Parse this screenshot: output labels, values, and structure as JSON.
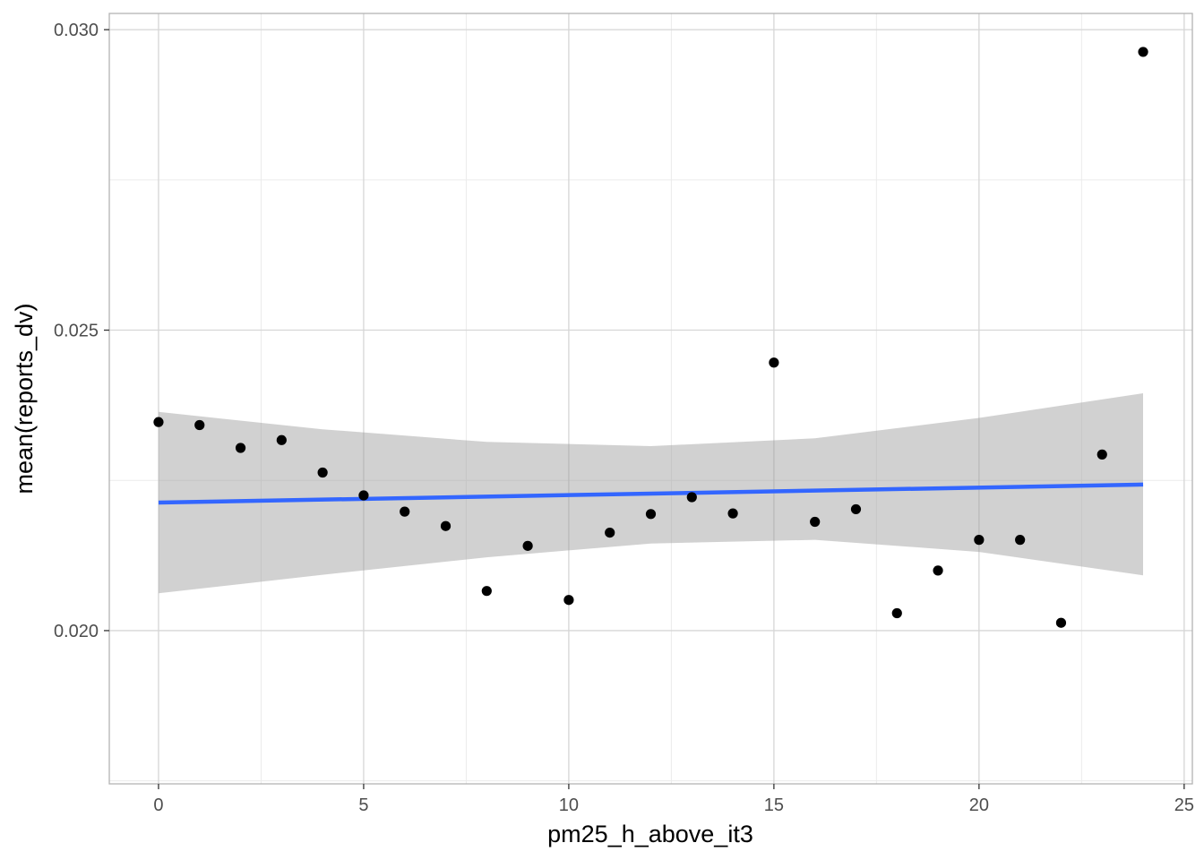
{
  "chart_data": {
    "type": "scatter",
    "title": "",
    "xlabel": "pm25_h_above_it3",
    "ylabel": "mean(reports_dv)",
    "xlim": [
      -1.2,
      25.2
    ],
    "ylim": [
      0.01745,
      0.03027
    ],
    "x_ticks": [
      0,
      5,
      10,
      15,
      20,
      25
    ],
    "x_tick_labels": [
      "0",
      "5",
      "10",
      "15",
      "20",
      "25"
    ],
    "y_ticks": [
      0.02,
      0.025,
      0.03
    ],
    "y_tick_labels": [
      "0.020",
      "0.025",
      "0.030"
    ],
    "grid": true,
    "points": {
      "x": [
        0,
        1,
        2,
        3,
        4,
        5,
        6,
        7,
        8,
        9,
        10,
        11,
        12,
        13,
        14,
        15,
        16,
        17,
        18,
        19,
        20,
        21,
        22,
        23,
        24
      ],
      "y": [
        0.02347,
        0.02342,
        0.02304,
        0.02317,
        0.02263,
        0.02225,
        0.02198,
        0.02174,
        0.02066,
        0.02141,
        0.02051,
        0.02163,
        0.02194,
        0.02222,
        0.02195,
        0.02446,
        0.02181,
        0.02202,
        0.02029,
        0.021,
        0.02151,
        0.02151,
        0.02013,
        0.02293,
        0.02963
      ],
      "color": "#000000"
    },
    "fit_line": {
      "method": "linear",
      "x": [
        0,
        24
      ],
      "y": [
        0.02213,
        0.02243
      ],
      "color": "#3366ff"
    },
    "confidence_band": {
      "x": [
        0,
        4,
        8,
        12,
        16,
        20,
        24
      ],
      "lower": [
        0.02062,
        0.02093,
        0.02122,
        0.02145,
        0.02151,
        0.02131,
        0.02092
      ],
      "upper": [
        0.02364,
        0.02335,
        0.02314,
        0.02307,
        0.0232,
        0.02354,
        0.02395
      ],
      "color": "#999999"
    }
  }
}
